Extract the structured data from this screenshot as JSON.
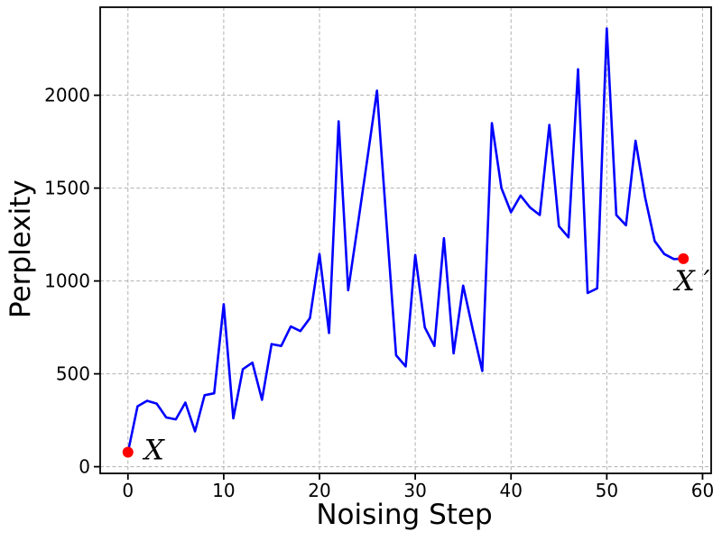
{
  "chart_data": {
    "type": "line",
    "title": "",
    "xlabel": "Noising Step",
    "ylabel": "Perplexity",
    "x": [
      0,
      1,
      2,
      3,
      4,
      5,
      6,
      7,
      8,
      9,
      10,
      11,
      12,
      13,
      14,
      15,
      16,
      17,
      18,
      19,
      20,
      21,
      22,
      23,
      24,
      25,
      26,
      27,
      28,
      29,
      30,
      31,
      32,
      33,
      34,
      35,
      36,
      37,
      38,
      39,
      40,
      41,
      42,
      43,
      44,
      45,
      46,
      47,
      48,
      49,
      50,
      51,
      52,
      53,
      54,
      55,
      56,
      57,
      58
    ],
    "y": [
      78,
      325,
      355,
      340,
      265,
      255,
      345,
      190,
      385,
      395,
      875,
      260,
      525,
      560,
      360,
      660,
      650,
      755,
      730,
      800,
      1145,
      720,
      1860,
      950,
      1300,
      1660,
      2025,
      1310,
      600,
      540,
      1140,
      750,
      650,
      1230,
      610,
      975,
      740,
      515,
      1850,
      1500,
      1370,
      1460,
      1395,
      1355,
      1840,
      1295,
      1235,
      2140,
      935,
      960,
      2360,
      1355,
      1300,
      1755,
      1450,
      1215,
      1145,
      1118,
      1120
    ],
    "xticks": [
      0,
      10,
      20,
      30,
      40,
      50,
      60
    ],
    "yticks": [
      0,
      500,
      1000,
      1500,
      2000
    ],
    "xlim": [
      -2.9,
      60.9
    ],
    "ylim": [
      -36,
      2474
    ],
    "grid": true,
    "grid_style": "dashed",
    "legend_position": "none",
    "line_color": "#0000ff",
    "marker_color": "#ff0000",
    "grid_color": "#b0b0b0",
    "spine_color": "#000000",
    "markers": [
      {
        "label": "start",
        "x": 0,
        "y": 78
      },
      {
        "label": "end",
        "x": 58,
        "y": 1120
      }
    ],
    "annotations": [
      {
        "text": "𝒳",
        "x": 1.7,
        "y": 40
      },
      {
        "text": "𝒳 ′",
        "x": 57.1,
        "y": 950
      }
    ]
  }
}
